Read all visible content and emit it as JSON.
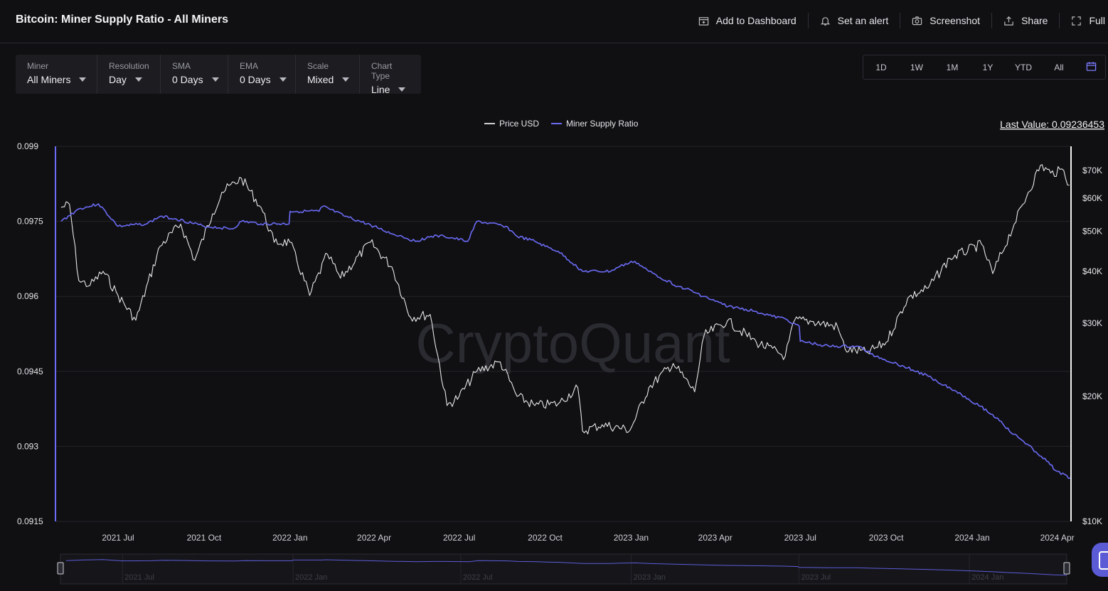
{
  "header": {
    "title": "Bitcoin: Miner Supply Ratio - All Miners",
    "actions": [
      {
        "label": "Add to Dashboard",
        "icon": "add-dashboard-icon"
      },
      {
        "label": "Set an alert",
        "icon": "bell-icon"
      },
      {
        "label": "Screenshot",
        "icon": "camera-icon"
      },
      {
        "label": "Share",
        "icon": "share-icon"
      },
      {
        "label": "Full",
        "icon": "fullscreen-icon"
      }
    ]
  },
  "controls": [
    {
      "label": "Miner",
      "value": "All Miners"
    },
    {
      "label": "Resolution",
      "value": "Day"
    },
    {
      "label": "SMA",
      "value": "0 Days"
    },
    {
      "label": "EMA",
      "value": "0 Days"
    },
    {
      "label": "Scale",
      "value": "Mixed"
    },
    {
      "label": "Chart Type",
      "value": "Line"
    }
  ],
  "ranges": [
    "1D",
    "1W",
    "1M",
    "1Y",
    "YTD",
    "All"
  ],
  "colors": {
    "background": "#101013",
    "price_line": "#e8e8e8",
    "ratio_line": "#6b6bf5",
    "grid": "#24242a",
    "accent": "#7b7bff"
  },
  "watermark": "CryptoQuant",
  "last_value_label": "Last Value: 0.09236453",
  "chart_data": {
    "type": "line",
    "legend": [
      "Price USD",
      "Miner Supply Ratio"
    ],
    "legend_position": "top-center",
    "grid": true,
    "x_ticks": [
      "2021 Jul",
      "2021 Oct",
      "2022 Jan",
      "2022 Apr",
      "2022 Jul",
      "2022 Oct",
      "2023 Jan",
      "2023 Apr",
      "2023 Jul",
      "2023 Oct",
      "2024 Jan",
      "2024 Apr"
    ],
    "y_left": {
      "label": "Miner Supply Ratio",
      "ticks": [
        "0.099",
        "0.0975",
        "0.096",
        "0.0945",
        "0.093",
        "0.0915"
      ],
      "range": [
        0.0915,
        0.099
      ]
    },
    "y_right": {
      "label": "Price USD",
      "scale": "log",
      "ticks": [
        "$70K",
        "$60K",
        "$50K",
        "$40K",
        "$30K",
        "$20K",
        "$10K"
      ],
      "tick_values": [
        70000,
        60000,
        50000,
        40000,
        30000,
        20000,
        10000
      ],
      "range": [
        10000,
        80000
      ]
    },
    "series": [
      {
        "name": "Price USD",
        "axis": "right",
        "x": [
          "2021-05-01",
          "2021-05-10",
          "2021-05-20",
          "2021-06-01",
          "2021-06-15",
          "2021-07-01",
          "2021-07-20",
          "2021-08-15",
          "2021-09-06",
          "2021-09-21",
          "2021-10-10",
          "2021-10-20",
          "2021-11-10",
          "2021-12-01",
          "2021-12-15",
          "2022-01-01",
          "2022-01-22",
          "2022-02-10",
          "2022-02-24",
          "2022-03-28",
          "2022-04-20",
          "2022-05-10",
          "2022-05-31",
          "2022-06-18",
          "2022-07-01",
          "2022-07-20",
          "2022-08-14",
          "2022-09-01",
          "2022-09-20",
          "2022-10-15",
          "2022-11-05",
          "2022-11-10",
          "2022-12-01",
          "2022-12-31",
          "2023-01-20",
          "2023-02-15",
          "2023-03-10",
          "2023-03-20",
          "2023-04-14",
          "2023-05-15",
          "2023-06-15",
          "2023-06-25",
          "2023-07-15",
          "2023-08-10",
          "2023-08-18",
          "2023-09-11",
          "2023-10-01",
          "2023-10-24",
          "2023-11-15",
          "2023-12-08",
          "2024-01-11",
          "2024-01-23",
          "2024-02-15",
          "2024-03-01",
          "2024-03-14",
          "2024-03-25",
          "2024-04-08",
          "2024-04-14"
        ],
        "values": [
          57000,
          58000,
          38000,
          37000,
          40000,
          35000,
          30500,
          46000,
          52000,
          42500,
          55000,
          62000,
          67000,
          57000,
          47000,
          47000,
          35000,
          44000,
          38500,
          47000,
          41000,
          31000,
          31500,
          19000,
          20000,
          23000,
          24200,
          20000,
          19000,
          19200,
          21000,
          16500,
          17100,
          16600,
          21000,
          24000,
          20500,
          28000,
          30400,
          27000,
          25000,
          30500,
          30300,
          29400,
          26000,
          25500,
          27000,
          34500,
          36500,
          43000,
          46500,
          39500,
          52000,
          62000,
          72000,
          69000,
          70000,
          64500
        ]
      },
      {
        "name": "Miner Supply Ratio",
        "axis": "left",
        "x": [
          "2021-05-01",
          "2021-05-20",
          "2021-06-01",
          "2021-06-10",
          "2021-07-01",
          "2021-08-01",
          "2021-08-15",
          "2021-09-01",
          "2021-10-01",
          "2021-11-01",
          "2021-11-10",
          "2021-12-01",
          "2021-12-31",
          "2022-01-01",
          "2022-02-01",
          "2022-02-05",
          "2022-03-01",
          "2022-04-01",
          "2022-04-20",
          "2022-05-01",
          "2022-05-15",
          "2022-06-01",
          "2022-06-15",
          "2022-07-10",
          "2022-07-20",
          "2022-08-20",
          "2022-09-01",
          "2022-09-20",
          "2022-10-01",
          "2022-10-15",
          "2022-11-10",
          "2022-12-10",
          "2022-12-20",
          "2023-01-05",
          "2023-01-20",
          "2023-02-20",
          "2023-03-01",
          "2023-04-01",
          "2023-04-15",
          "2023-05-15",
          "2023-06-01",
          "2023-06-15",
          "2023-06-30",
          "2023-07-01",
          "2023-08-01",
          "2023-09-01",
          "2023-09-20",
          "2023-10-20",
          "2023-11-15",
          "2023-12-15",
          "2024-01-10",
          "2024-02-01",
          "2024-02-10",
          "2024-02-25",
          "2024-03-15",
          "2024-04-01",
          "2024-04-15"
        ],
        "values": [
          0.0975,
          0.09775,
          0.0978,
          0.09785,
          0.0974,
          0.09745,
          0.0976,
          0.09755,
          0.0974,
          0.09735,
          0.0975,
          0.09745,
          0.09745,
          0.0977,
          0.0977,
          0.0978,
          0.0976,
          0.0974,
          0.09725,
          0.0972,
          0.0971,
          0.0972,
          0.0972,
          0.0971,
          0.0975,
          0.0974,
          0.0972,
          0.0971,
          0.097,
          0.0969,
          0.0965,
          0.0965,
          0.0966,
          0.0967,
          0.0965,
          0.0962,
          0.09615,
          0.0959,
          0.0958,
          0.0957,
          0.0956,
          0.09555,
          0.0954,
          0.0951,
          0.095,
          0.095,
          0.0948,
          0.0946,
          0.0944,
          0.0941,
          0.0938,
          0.0935,
          0.0933,
          0.0931,
          0.0928,
          0.0925,
          0.09236453
        ]
      }
    ],
    "navigator": {
      "x_ticks": [
        "2021 Jul",
        "2022 Jan",
        "2022 Jul",
        "2023 Jan",
        "2023 Jul",
        "2024 Jan"
      ]
    }
  }
}
